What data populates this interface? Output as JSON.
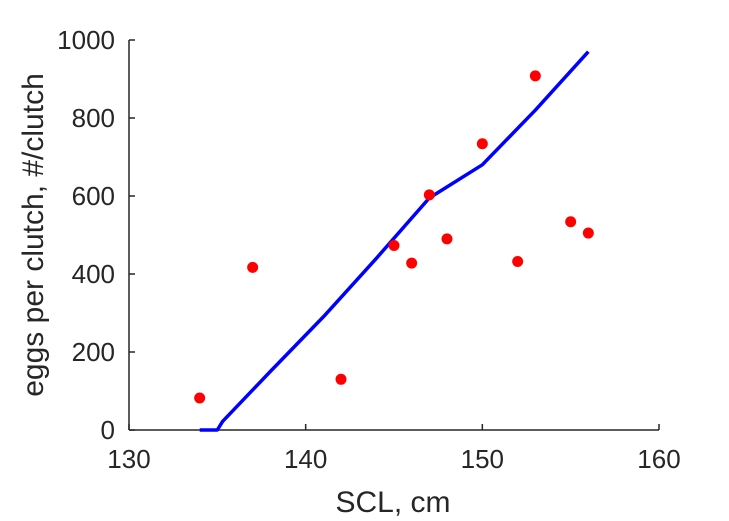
{
  "chart_data": {
    "type": "scatter",
    "xlabel": "SCL, cm",
    "ylabel": "eggs per clutch, #/clutch",
    "xlim": [
      130,
      160
    ],
    "ylim": [
      0,
      1000
    ],
    "xticks": [
      130,
      140,
      150,
      160
    ],
    "yticks": [
      0,
      200,
      400,
      600,
      800,
      1000
    ],
    "xtick_labels": [
      "130",
      "140",
      "150",
      "160"
    ],
    "ytick_labels": [
      "0",
      "200",
      "400",
      "600",
      "800",
      "1000"
    ],
    "grid": false,
    "box": false,
    "series": [
      {
        "kind": "scatter",
        "color": "#ff0000",
        "points": [
          {
            "x": 134,
            "y": 82
          },
          {
            "x": 137,
            "y": 417
          },
          {
            "x": 142,
            "y": 130
          },
          {
            "x": 145,
            "y": 473
          },
          {
            "x": 146,
            "y": 428
          },
          {
            "x": 147,
            "y": 603
          },
          {
            "x": 148,
            "y": 490
          },
          {
            "x": 150,
            "y": 734
          },
          {
            "x": 152,
            "y": 432
          },
          {
            "x": 153,
            "y": 908
          },
          {
            "x": 155,
            "y": 534
          },
          {
            "x": 156,
            "y": 505
          }
        ]
      },
      {
        "kind": "line",
        "color": "#0000ff",
        "points": [
          {
            "x": 134,
            "y": 0
          },
          {
            "x": 135,
            "y": 0
          },
          {
            "x": 135.3,
            "y": 22
          },
          {
            "x": 138,
            "y": 150
          },
          {
            "x": 141,
            "y": 290
          },
          {
            "x": 144,
            "y": 440
          },
          {
            "x": 147,
            "y": 595
          },
          {
            "x": 150,
            "y": 680
          },
          {
            "x": 153,
            "y": 820
          },
          {
            "x": 156,
            "y": 970
          }
        ]
      }
    ]
  }
}
